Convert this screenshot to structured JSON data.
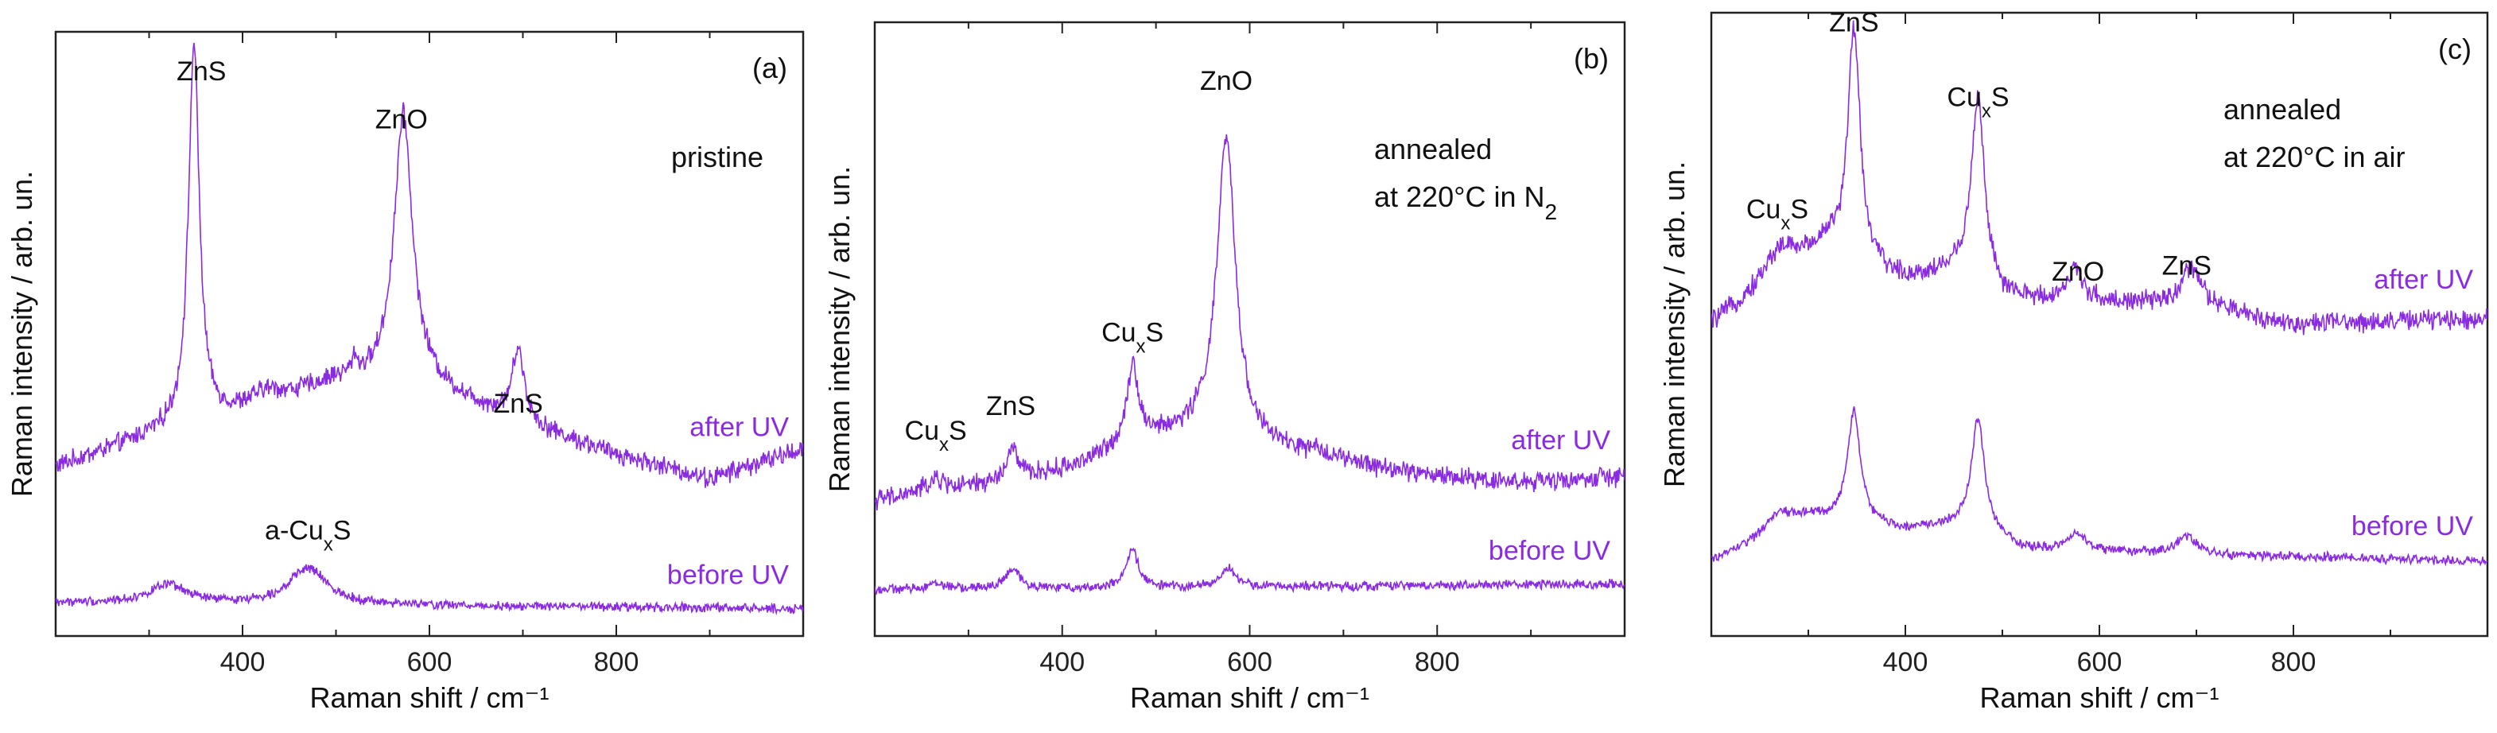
{
  "colors": {
    "trace": "#8a2be2",
    "axis": "#222222",
    "text": "#111111"
  },
  "chart_data": [
    {
      "type": "line",
      "panel_label": "(a)",
      "condition_line1": "pristine",
      "condition_line2": "",
      "xlabel": "Raman shift / cm⁻¹",
      "ylabel": "Raman intensity / arb. un.",
      "xlim": [
        200,
        1000
      ],
      "ylim": [
        0,
        100
      ],
      "xticks": [
        400,
        600,
        800
      ],
      "series": [
        {
          "name": "after UV",
          "offset": 20,
          "baseline": [
            [
              200,
              8
            ],
            [
              300,
              13
            ],
            [
              400,
              17
            ],
            [
              500,
              22
            ],
            [
              600,
              21
            ],
            [
              700,
              15
            ],
            [
              800,
              10
            ],
            [
              900,
              6
            ],
            [
              1000,
              11
            ]
          ],
          "peaks": [
            [
              348,
              63,
              7
            ],
            [
              572,
              45,
              12
            ],
            [
              695,
              12,
              8
            ],
            [
              520,
              3,
              3
            ],
            [
              425,
              2,
              20
            ]
          ]
        },
        {
          "name": "before UV",
          "offset": 4.5,
          "baseline": [
            [
              200,
              1
            ],
            [
              1000,
              0
            ]
          ],
          "peaks": [
            [
              320,
              3,
              25
            ],
            [
              470,
              6,
              25
            ]
          ]
        }
      ],
      "annotations": [
        {
          "text": "ZnS",
          "x": 356,
          "y": 92
        },
        {
          "text": "ZnO",
          "x": 570,
          "y": 84
        },
        {
          "text": "ZnS",
          "x": 695,
          "y": 37
        },
        {
          "text": "a-Cu",
          "sub": "x",
          "post": "S",
          "x": 470,
          "y": 16
        }
      ]
    },
    {
      "type": "line",
      "panel_label": "(b)",
      "condition_line1": "annealed",
      "condition_line2": "at 220°C in N",
      "condition_sub": "2",
      "xlabel": "Raman shift / cm⁻¹",
      "ylabel": "Raman intensity / arb. un.",
      "xlim": [
        200,
        1000
      ],
      "ylim": [
        0,
        100
      ],
      "xticks": [
        400,
        600,
        800
      ],
      "series": [
        {
          "name": "after UV",
          "offset": 22,
          "baseline": [
            [
              200,
              0
            ],
            [
              300,
              2
            ],
            [
              400,
              5
            ],
            [
              500,
              10
            ],
            [
              550,
              11
            ],
            [
              600,
              9
            ],
            [
              700,
              6
            ],
            [
              800,
              4
            ],
            [
              900,
              3
            ],
            [
              1000,
              4
            ]
          ],
          "peaks": [
            [
              265,
              2,
              15
            ],
            [
              347,
              5,
              7
            ],
            [
              475,
              13,
              8
            ],
            [
              575,
              49,
              12
            ],
            [
              680,
              1,
              20
            ]
          ]
        },
        {
          "name": "before UV",
          "offset": 7.5,
          "baseline": [
            [
              200,
              0
            ],
            [
              1000,
              1
            ]
          ],
          "peaks": [
            [
              265,
              1,
              12
            ],
            [
              347,
              3,
              10
            ],
            [
              475,
              6,
              8
            ],
            [
              577,
              3,
              10
            ]
          ]
        }
      ],
      "annotations": [
        {
          "text": "ZnO",
          "x": 575,
          "y": 89
        },
        {
          "text": "Cu",
          "sub": "x",
          "post": "S",
          "x": 475,
          "y": 48
        },
        {
          "text": "ZnS",
          "x": 345,
          "y": 36
        },
        {
          "text": "Cu",
          "sub": "x",
          "post": "S",
          "x": 265,
          "y": 32
        }
      ]
    },
    {
      "type": "line",
      "panel_label": "(c)",
      "condition_line1": "annealed",
      "condition_line2": "at 220°C in air",
      "condition_sub": "",
      "xlabel": "Raman shift / cm⁻¹",
      "ylabel": "Raman intensity / arb. un.",
      "xlim": [
        200,
        1000
      ],
      "ylim": [
        0,
        100
      ],
      "xticks": [
        400,
        600,
        800
      ],
      "series": [
        {
          "name": "after UV",
          "offset": 50,
          "baseline": [
            [
              200,
              0
            ],
            [
              300,
              10
            ],
            [
              400,
              7
            ],
            [
              470,
              9
            ],
            [
              500,
              4
            ],
            [
              700,
              3
            ],
            [
              800,
              0
            ],
            [
              1000,
              1
            ]
          ],
          "peaks": [
            [
              270,
              5,
              20
            ],
            [
              347,
              38,
              8
            ],
            [
              475,
              28,
              8
            ],
            [
              575,
              5,
              10
            ],
            [
              695,
              6,
              12
            ],
            [
              320,
              3,
              10
            ]
          ]
        },
        {
          "name": "before UV",
          "offset": 12,
          "baseline": [
            [
              200,
              0
            ],
            [
              300,
              7
            ],
            [
              400,
              5
            ],
            [
              470,
              6
            ],
            [
              520,
              2
            ],
            [
              700,
              1
            ],
            [
              1000,
              0
            ]
          ],
          "peaks": [
            [
              270,
              3,
              15
            ],
            [
              347,
              18,
              8
            ],
            [
              475,
              17,
              8
            ],
            [
              577,
              3,
              10
            ],
            [
              690,
              3,
              12
            ]
          ]
        }
      ],
      "annotations": [
        {
          "text": "ZnS",
          "x": 347,
          "y": 97
        },
        {
          "text": "Cu",
          "sub": "x",
          "post": "S",
          "x": 475,
          "y": 85
        },
        {
          "text": "Cu",
          "sub": "x",
          "post": "S",
          "x": 268,
          "y": 67
        },
        {
          "text": "ZnO",
          "x": 578,
          "y": 57
        },
        {
          "text": "ZnS",
          "x": 690,
          "y": 58
        }
      ]
    }
  ]
}
